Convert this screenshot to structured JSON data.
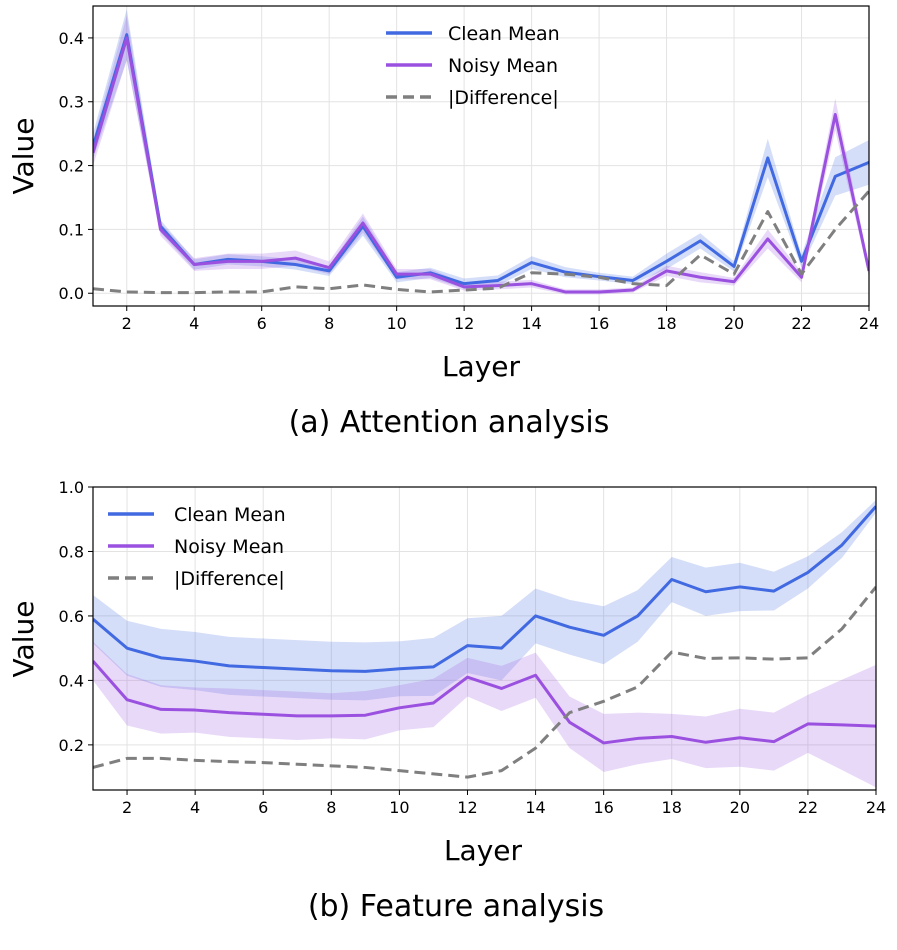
{
  "chart_data": [
    {
      "type": "line",
      "caption": "(a) Attention analysis",
      "xlabel": "Layer",
      "ylabel": "Value",
      "xlim": [
        1,
        24
      ],
      "ylim": [
        -0.02,
        0.45
      ],
      "xticks": [
        2,
        4,
        6,
        8,
        10,
        12,
        14,
        16,
        18,
        20,
        22,
        24
      ],
      "yticks": [
        0.0,
        0.1,
        0.2,
        0.3,
        0.4
      ],
      "ytick_labels": [
        "0.0",
        "0.1",
        "0.2",
        "0.3",
        "0.4"
      ],
      "grid": true,
      "legend_position": "top-center",
      "x": [
        1,
        2,
        3,
        4,
        5,
        6,
        7,
        8,
        9,
        10,
        11,
        12,
        13,
        14,
        15,
        16,
        17,
        18,
        19,
        20,
        21,
        22,
        23,
        24
      ],
      "series": [
        {
          "name": "Clean Mean",
          "color": "#4169e1",
          "style": "solid",
          "values": [
            0.23,
            0.405,
            0.105,
            0.045,
            0.053,
            0.05,
            0.045,
            0.035,
            0.105,
            0.025,
            0.032,
            0.015,
            0.02,
            0.048,
            0.033,
            0.026,
            0.02,
            0.05,
            0.082,
            0.042,
            0.212,
            0.05,
            0.183,
            0.205
          ],
          "band": [
            0.02,
            0.04,
            0.01,
            0.008,
            0.008,
            0.008,
            0.008,
            0.008,
            0.015,
            0.008,
            0.008,
            0.008,
            0.008,
            0.01,
            0.008,
            0.006,
            0.006,
            0.012,
            0.012,
            0.008,
            0.03,
            0.01,
            0.03,
            0.035
          ]
        },
        {
          "name": "Noisy Mean",
          "color": "#9b51e0",
          "style": "solid",
          "values": [
            0.22,
            0.4,
            0.1,
            0.045,
            0.05,
            0.05,
            0.055,
            0.04,
            0.11,
            0.03,
            0.03,
            0.01,
            0.012,
            0.015,
            0.002,
            0.002,
            0.005,
            0.035,
            0.025,
            0.018,
            0.085,
            0.025,
            0.28,
            0.035
          ],
          "band": [
            0.02,
            0.035,
            0.01,
            0.01,
            0.012,
            0.012,
            0.012,
            0.01,
            0.015,
            0.008,
            0.008,
            0.006,
            0.006,
            0.006,
            0.004,
            0.004,
            0.004,
            0.008,
            0.008,
            0.006,
            0.015,
            0.008,
            0.025,
            0.01
          ]
        },
        {
          "name": "|Difference|",
          "color": "#7f7f7f",
          "style": "dashed",
          "values": [
            0.007,
            0.002,
            0.001,
            0.001,
            0.002,
            0.002,
            0.01,
            0.007,
            0.013,
            0.006,
            0.002,
            0.005,
            0.008,
            0.032,
            0.03,
            0.025,
            0.015,
            0.012,
            0.06,
            0.03,
            0.128,
            0.03,
            0.1,
            0.16
          ]
        }
      ]
    },
    {
      "type": "line",
      "caption": "(b) Feature analysis",
      "xlabel": "Layer",
      "ylabel": "Value",
      "xlim": [
        1,
        24
      ],
      "ylim": [
        0.06,
        1.0
      ],
      "xticks": [
        2,
        4,
        6,
        8,
        10,
        12,
        14,
        16,
        18,
        20,
        22,
        24
      ],
      "yticks": [
        0.2,
        0.4,
        0.6,
        0.8,
        1.0
      ],
      "ytick_labels": [
        "0.2",
        "0.4",
        "0.6",
        "0.8",
        "1.0"
      ],
      "grid": true,
      "legend_position": "top-left",
      "x": [
        1,
        2,
        3,
        4,
        5,
        6,
        7,
        8,
        9,
        10,
        11,
        12,
        13,
        14,
        15,
        16,
        17,
        18,
        19,
        20,
        21,
        22,
        23,
        24
      ],
      "series": [
        {
          "name": "Clean Mean",
          "color": "#4169e1",
          "style": "solid",
          "values": [
            0.59,
            0.5,
            0.47,
            0.46,
            0.445,
            0.44,
            0.435,
            0.43,
            0.428,
            0.436,
            0.442,
            0.508,
            0.5,
            0.6,
            0.565,
            0.54,
            0.6,
            0.713,
            0.675,
            0.69,
            0.677,
            0.735,
            0.82,
            0.94
          ],
          "band": [
            0.075,
            0.085,
            0.09,
            0.09,
            0.09,
            0.09,
            0.09,
            0.09,
            0.09,
            0.085,
            0.09,
            0.085,
            0.1,
            0.085,
            0.085,
            0.09,
            0.08,
            0.07,
            0.075,
            0.075,
            0.06,
            0.05,
            0.04,
            0.02
          ]
        },
        {
          "name": "Noisy Mean",
          "color": "#9b51e0",
          "style": "solid",
          "values": [
            0.46,
            0.34,
            0.31,
            0.308,
            0.3,
            0.295,
            0.29,
            0.29,
            0.292,
            0.315,
            0.33,
            0.41,
            0.375,
            0.416,
            0.27,
            0.206,
            0.22,
            0.226,
            0.208,
            0.222,
            0.21,
            0.265,
            0.262,
            0.258
          ],
          "band": [
            0.06,
            0.08,
            0.075,
            0.07,
            0.075,
            0.075,
            0.075,
            0.07,
            0.075,
            0.07,
            0.075,
            0.06,
            0.07,
            0.07,
            0.08,
            0.09,
            0.08,
            0.07,
            0.08,
            0.09,
            0.09,
            0.09,
            0.14,
            0.19
          ]
        },
        {
          "name": "|Difference|",
          "color": "#7f7f7f",
          "style": "dashed",
          "values": [
            0.13,
            0.158,
            0.158,
            0.152,
            0.148,
            0.145,
            0.14,
            0.135,
            0.13,
            0.12,
            0.11,
            0.1,
            0.12,
            0.19,
            0.3,
            0.335,
            0.38,
            0.488,
            0.468,
            0.47,
            0.466,
            0.47,
            0.56,
            0.69
          ]
        }
      ]
    }
  ]
}
